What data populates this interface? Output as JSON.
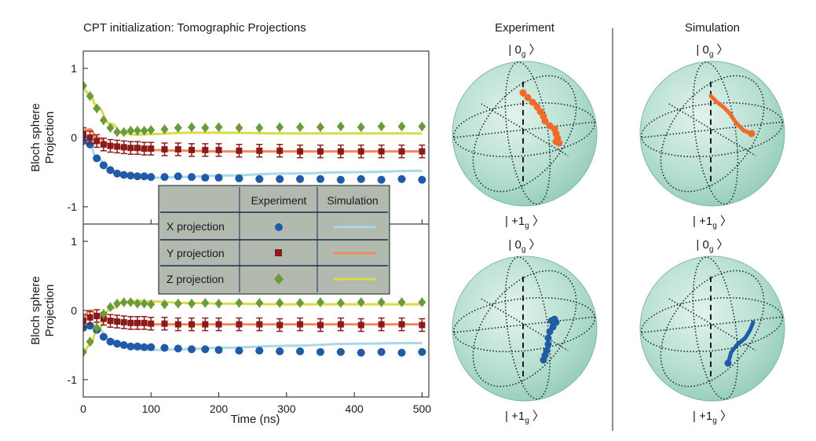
{
  "figure": {
    "title": "CPT initialization: Tomographic Projections",
    "column_headers": {
      "experiment": "Experiment",
      "simulation": "Simulation"
    },
    "sphere_labels": {
      "top": "0",
      "bottom": "+1",
      "subscript": "g"
    },
    "colors": {
      "x": "#1f5ba6",
      "y": "#8b1a1a",
      "z": "#6b9a3a",
      "sim_x": "#a8d8ea",
      "sim_y": "#f08a5d",
      "sim_z": "#d8dc4a",
      "traj_top": "#f06a28",
      "traj_bottom": "#1f5ba6",
      "sphere_fill": "#a8d8c8",
      "legend_bg": "#b2bab0"
    }
  },
  "legend": {
    "col_experiment": "Experiment",
    "col_simulation": "Simulation",
    "rows": [
      {
        "label": "X projection",
        "marker": "circle",
        "key": "x"
      },
      {
        "label": "Y projection",
        "marker": "square",
        "key": "y"
      },
      {
        "label": "Z projection",
        "marker": "diamond",
        "key": "z"
      }
    ]
  },
  "chart_data": [
    {
      "type": "scatter",
      "ylabel": "Bloch sphere Projection",
      "xlim": [
        0,
        510
      ],
      "ylim": [
        -1.25,
        1.25
      ],
      "yticks": [
        -1,
        0,
        1
      ],
      "ytick_labels": [
        "-1",
        "0",
        "1"
      ],
      "series": [
        {
          "name": "X projection",
          "key": "x",
          "x": [
            0,
            10,
            20,
            30,
            40,
            50,
            60,
            70,
            80,
            90,
            100,
            120,
            140,
            160,
            180,
            200,
            230,
            260,
            290,
            320,
            350,
            380,
            410,
            440,
            470,
            500
          ],
          "y": [
            -0.05,
            -0.1,
            -0.3,
            -0.4,
            -0.47,
            -0.52,
            -0.54,
            -0.55,
            -0.56,
            -0.56,
            -0.57,
            -0.57,
            -0.56,
            -0.57,
            -0.58,
            -0.58,
            -0.59,
            -0.6,
            -0.6,
            -0.6,
            -0.6,
            -0.61,
            -0.6,
            -0.61,
            -0.6,
            -0.61
          ]
        },
        {
          "name": "Y projection",
          "key": "y",
          "x": [
            0,
            10,
            20,
            30,
            40,
            50,
            60,
            70,
            80,
            90,
            100,
            120,
            140,
            160,
            180,
            200,
            230,
            260,
            290,
            320,
            350,
            380,
            410,
            440,
            470,
            500
          ],
          "y": [
            0.05,
            0.0,
            -0.05,
            -0.1,
            -0.12,
            -0.13,
            -0.14,
            -0.15,
            -0.15,
            -0.16,
            -0.16,
            -0.17,
            -0.17,
            -0.18,
            -0.18,
            -0.18,
            -0.19,
            -0.19,
            -0.19,
            -0.2,
            -0.2,
            -0.2,
            -0.2,
            -0.2,
            -0.2,
            -0.2
          ]
        },
        {
          "name": "Z projection",
          "key": "z",
          "x": [
            0,
            10,
            20,
            30,
            40,
            50,
            60,
            70,
            80,
            90,
            100,
            120,
            140,
            160,
            180,
            200,
            230,
            260,
            290,
            320,
            350,
            380,
            410,
            440,
            470,
            500
          ],
          "y": [
            0.75,
            0.6,
            0.42,
            0.25,
            0.14,
            0.08,
            0.08,
            0.1,
            0.1,
            0.1,
            0.11,
            0.12,
            0.14,
            0.15,
            0.14,
            0.15,
            0.14,
            0.14,
            0.15,
            0.15,
            0.15,
            0.16,
            0.15,
            0.16,
            0.16,
            0.16
          ]
        }
      ],
      "simulation": [
        {
          "key": "x",
          "x": [
            0,
            10,
            20,
            40,
            60,
            80,
            100,
            150,
            200,
            300,
            400,
            500
          ],
          "y": [
            -0.05,
            -0.12,
            -0.3,
            -0.48,
            -0.55,
            -0.57,
            -0.58,
            -0.57,
            -0.55,
            -0.52,
            -0.5,
            -0.48
          ]
        },
        {
          "key": "y",
          "x": [
            0,
            10,
            20,
            40,
            60,
            80,
            100,
            150,
            200,
            300,
            400,
            500
          ],
          "y": [
            0.1,
            0.12,
            0.0,
            -0.1,
            -0.15,
            -0.17,
            -0.18,
            -0.19,
            -0.2,
            -0.2,
            -0.2,
            -0.2
          ]
        },
        {
          "key": "z",
          "x": [
            0,
            10,
            20,
            40,
            60,
            80,
            100,
            150,
            200,
            300,
            400,
            500
          ],
          "y": [
            0.7,
            0.62,
            0.45,
            0.2,
            0.06,
            0.04,
            0.05,
            0.07,
            0.07,
            0.06,
            0.06,
            0.06
          ]
        }
      ]
    },
    {
      "type": "scatter",
      "ylabel": "Bloch sphere Projection",
      "xlabel": "Time (ns)",
      "xlim": [
        0,
        510
      ],
      "ylim": [
        -1.25,
        1.25
      ],
      "xticks": [
        0,
        100,
        200,
        300,
        400,
        500
      ],
      "xtick_labels": [
        "0",
        "100",
        "200",
        "300",
        "400",
        "500"
      ],
      "yticks": [
        -1,
        0,
        1
      ],
      "ytick_labels": [
        "-1",
        "0",
        "1"
      ],
      "series": [
        {
          "name": "X projection",
          "key": "x",
          "x": [
            0,
            10,
            20,
            30,
            40,
            50,
            60,
            70,
            80,
            90,
            100,
            120,
            140,
            160,
            180,
            200,
            230,
            260,
            290,
            320,
            350,
            380,
            410,
            440,
            470,
            500
          ],
          "y": [
            -0.25,
            -0.22,
            -0.28,
            -0.38,
            -0.45,
            -0.48,
            -0.5,
            -0.52,
            -0.52,
            -0.53,
            -0.53,
            -0.54,
            -0.55,
            -0.56,
            -0.56,
            -0.57,
            -0.58,
            -0.58,
            -0.59,
            -0.59,
            -0.6,
            -0.6,
            -0.61,
            -0.6,
            -0.61,
            -0.6
          ]
        },
        {
          "name": "Y projection",
          "key": "y",
          "x": [
            0,
            10,
            20,
            30,
            40,
            50,
            60,
            70,
            80,
            90,
            100,
            120,
            140,
            160,
            180,
            200,
            230,
            260,
            290,
            320,
            350,
            380,
            410,
            440,
            470,
            500
          ],
          "y": [
            -0.15,
            -0.1,
            -0.08,
            -0.12,
            -0.15,
            -0.16,
            -0.17,
            -0.18,
            -0.18,
            -0.18,
            -0.19,
            -0.19,
            -0.2,
            -0.2,
            -0.2,
            -0.2,
            -0.2,
            -0.2,
            -0.21,
            -0.2,
            -0.21,
            -0.2,
            -0.21,
            -0.2,
            -0.2,
            -0.21
          ]
        },
        {
          "name": "Z projection",
          "key": "z",
          "x": [
            0,
            10,
            20,
            30,
            40,
            50,
            60,
            70,
            80,
            90,
            100,
            120,
            140,
            160,
            180,
            200,
            230,
            260,
            290,
            320,
            350,
            380,
            410,
            440,
            470,
            500
          ],
          "y": [
            -0.6,
            -0.45,
            -0.25,
            -0.05,
            0.05,
            0.1,
            0.12,
            0.12,
            0.1,
            0.1,
            0.09,
            0.09,
            0.1,
            0.1,
            0.11,
            0.1,
            0.11,
            0.11,
            0.11,
            0.11,
            0.12,
            0.11,
            0.12,
            0.12,
            0.12,
            0.12
          ]
        }
      ],
      "simulation": [
        {
          "key": "x",
          "x": [
            0,
            10,
            20,
            40,
            60,
            80,
            100,
            150,
            200,
            300,
            400,
            500
          ],
          "y": [
            -0.25,
            -0.18,
            -0.25,
            -0.42,
            -0.52,
            -0.56,
            -0.57,
            -0.56,
            -0.54,
            -0.51,
            -0.48,
            -0.47
          ]
        },
        {
          "key": "y",
          "x": [
            0,
            10,
            20,
            40,
            60,
            80,
            100,
            150,
            200,
            300,
            400,
            500
          ],
          "y": [
            -0.1,
            0.0,
            -0.05,
            -0.12,
            -0.17,
            -0.19,
            -0.2,
            -0.2,
            -0.2,
            -0.2,
            -0.2,
            -0.2
          ]
        },
        {
          "key": "z",
          "x": [
            0,
            10,
            20,
            40,
            60,
            80,
            100,
            150,
            200,
            300,
            400,
            500
          ],
          "y": [
            -0.6,
            -0.5,
            -0.3,
            0.02,
            0.12,
            0.14,
            0.13,
            0.11,
            0.1,
            0.09,
            0.09,
            0.09
          ]
        }
      ]
    }
  ]
}
